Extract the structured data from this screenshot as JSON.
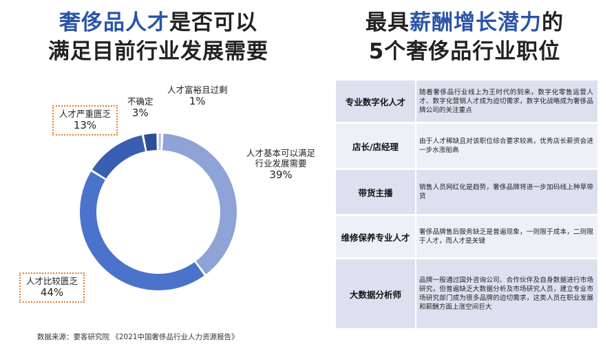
{
  "left_title": {
    "highlight": "奢侈品人才",
    "line1_rest": "是否可以",
    "line2": "满足目前行业发展需要"
  },
  "right_title": {
    "line1_pre": "最具",
    "highlight": "薪酬增长潜力",
    "line1_post": "的",
    "line2": "5个奢侈品行业职位"
  },
  "chart_data": {
    "type": "pie",
    "variant": "donut",
    "slices": [
      {
        "label": "人才基本可以满足行业发展需要",
        "value": 39,
        "display": "39%",
        "label_lines": [
          "人才基本可以满足",
          "行业发展需要"
        ],
        "color": "#8ea3d6",
        "boxed": false
      },
      {
        "label": "人才比较匮乏",
        "value": 44,
        "display": "44%",
        "label_lines": [
          "人才比较匮乏"
        ],
        "color": "#4c73cb",
        "boxed": true
      },
      {
        "label": "人才严重匮乏",
        "value": 13,
        "display": "13%",
        "label_lines": [
          "人才严重匮乏"
        ],
        "color": "#3a5fb0",
        "boxed": true
      },
      {
        "label": "不确定",
        "value": 3,
        "display": "3%",
        "label_lines": [
          "不确定"
        ],
        "color": "#2c4f93",
        "boxed": false
      },
      {
        "label": "人才富裕且过剩",
        "value": 1,
        "display": "1%",
        "label_lines": [
          "人才富裕且过剩"
        ],
        "color": "#b9c7e8",
        "boxed": false
      }
    ]
  },
  "source": "数据来源：要客研究院 《2021中国奢侈品行业人力资源报告》",
  "positions_table": {
    "rows": [
      {
        "job": "专业数字化人才",
        "desc": "随着奢侈品行业线上为王时代的到来，数字化零售运营人才、数字化营销人才成为迫切需求，数字化战略成为奢侈品牌公司的关注重点"
      },
      {
        "job": "店长/店经理",
        "desc": "由于人才稀缺且对该职位综合要求较高，优秀店长薪资会进一步水涨船高"
      },
      {
        "job": "带货主播",
        "desc": "销售人员网红化是趋势，奢侈品牌将进一步加码线上种草带货"
      },
      {
        "job": "维修保养专业人才",
        "desc": "奢侈品牌售后服务缺乏是普遍现象，一则限于成本，二则限于人才，而人才是关键"
      },
      {
        "job": "大数据分析师",
        "desc": "品牌一般通过国外咨询公司、合作伙伴及自身数据进行市场研究，但普遍缺乏大数据分析及市场研究人员，建立专业市场研究部门成为很多品牌的迫切需求，这类人员在职业发展和薪酬方面上涨空间巨大"
      }
    ]
  }
}
